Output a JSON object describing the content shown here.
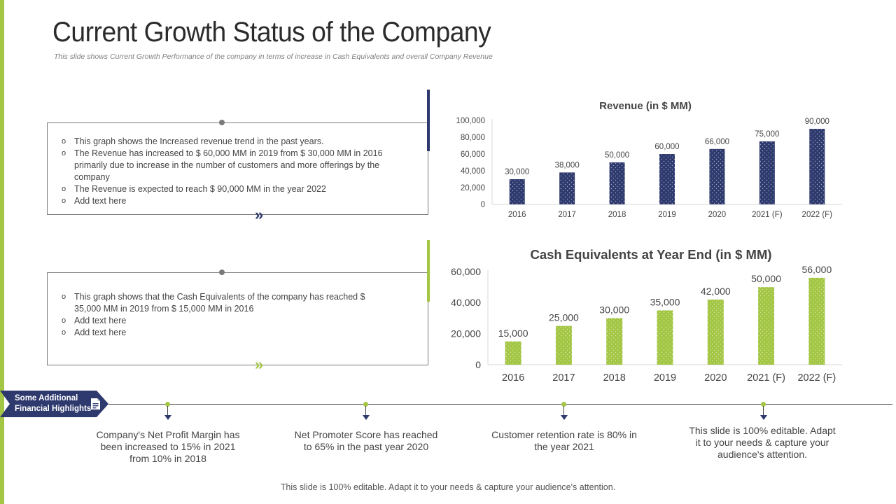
{
  "title": "Current Growth Status of the Company",
  "subtitle": "This slide shows Current Growth Performance of the company in terms of increase in Cash Equivalents and overall Company Revenue",
  "box1": {
    "bullets": [
      "This graph shows the Increased revenue trend in the past years.",
      "The Revenue has increased to $ 60,000 MM in 2019 from $ 30,000 MM in 2016 primarily due to increase in the number of customers and more offerings by the company",
      "The Revenue is expected to reach $ 90,000 MM in the year 2022",
      "Add text here"
    ]
  },
  "box2": {
    "bullets": [
      "This graph shows that the Cash Equivalents of the company has reached $ 35,000 MM in 2019 from $ 15,000 MM in 2016",
      "Add text here",
      "Add text here"
    ]
  },
  "chevron": "»",
  "chart_data": [
    {
      "type": "bar",
      "title": "Revenue (in $ MM)",
      "categories": [
        "2016",
        "2017",
        "2018",
        "2019",
        "2020",
        "2021 (F)",
        "2022 (F)"
      ],
      "values": [
        30000,
        38000,
        50000,
        60000,
        66000,
        75000,
        90000
      ],
      "value_labels": [
        "30,000",
        "38,000",
        "50,000",
        "60,000",
        "66,000",
        "75,000",
        "90,000"
      ],
      "yticks": [
        "0",
        "20,000",
        "40,000",
        "60,000",
        "80,000",
        "100,000"
      ],
      "ylim": [
        0,
        100000
      ],
      "xlabel": "",
      "ylabel": "",
      "color": "#2e3a6e"
    },
    {
      "type": "bar",
      "title": "Cash Equivalents at Year End (in $ MM)",
      "categories": [
        "2016",
        "2017",
        "2018",
        "2019",
        "2020",
        "2021 (F)",
        "2022 (F)"
      ],
      "values": [
        15000,
        25000,
        30000,
        35000,
        42000,
        50000,
        56000
      ],
      "value_labels": [
        "15,000",
        "25,000",
        "30,000",
        "35,000",
        "42,000",
        "50,000",
        "56,000"
      ],
      "yticks": [
        "0",
        "20,000",
        "40,000",
        "60,000"
      ],
      "ylim": [
        0,
        60000
      ],
      "xlabel": "",
      "ylabel": "",
      "color": "#a3c644"
    }
  ],
  "ribbon": {
    "line1": "Some Additional",
    "line2": "Financial Highlights",
    "icon": "document-icon"
  },
  "highlights": [
    "Company's Net Profit Margin has been increased to 15% in 2021 from 10% in 2018",
    "Net Promoter Score has reached to 65% in the past year 2020",
    "Customer retention rate is 80% in the year 2021",
    "This slide is 100% editable. Adapt it to your needs & capture your audience's attention."
  ],
  "footer": "This slide is 100% editable. Adapt it to your needs & capture your audience's attention.",
  "colors": {
    "navy": "#2e3a6e",
    "green": "#a3c644"
  }
}
